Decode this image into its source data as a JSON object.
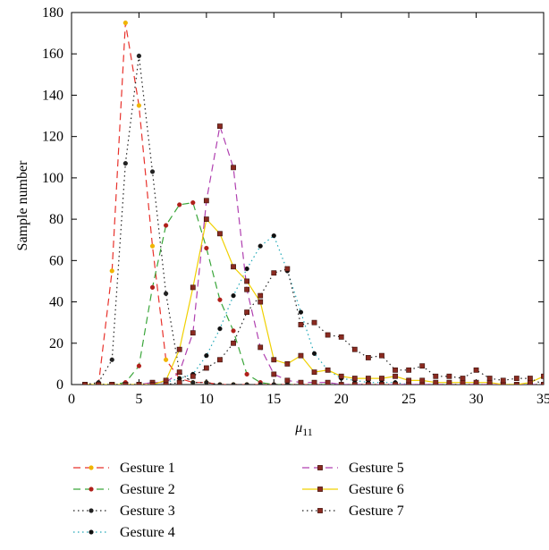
{
  "chart_data": {
    "type": "line",
    "title": "",
    "xlabel": "μ",
    "xlabel_subscript": "11",
    "ylabel": "Sample number",
    "xlim": [
      0,
      35
    ],
    "ylim": [
      0,
      180
    ],
    "xticks": [
      0,
      5,
      10,
      15,
      20,
      25,
      30,
      35
    ],
    "yticks": [
      0,
      20,
      40,
      60,
      80,
      100,
      120,
      140,
      160,
      180
    ],
    "grid": false,
    "legend_position": "bottom",
    "series": [
      {
        "name": "Gesture 1",
        "color": "#e8322c",
        "dash": "dashed",
        "marker": "dot",
        "marker_color": "#f0b400",
        "x": [
          1,
          2,
          3,
          4,
          5,
          6,
          7,
          8,
          9,
          10,
          11,
          12,
          13,
          14,
          15,
          16,
          17,
          18,
          19,
          20,
          21,
          22,
          23,
          24,
          25,
          26,
          27,
          28,
          29,
          30,
          31,
          32,
          33,
          34,
          35
        ],
        "y": [
          0,
          0,
          55,
          175,
          135,
          67,
          12,
          3,
          1,
          1,
          0,
          0,
          0,
          0,
          0,
          0,
          0,
          0,
          0,
          0,
          0,
          0,
          0,
          0,
          0,
          0,
          0,
          0,
          0,
          0,
          0,
          0,
          0,
          0,
          0
        ]
      },
      {
        "name": "Gesture 2",
        "color": "#3aa63a",
        "dash": "dashed",
        "marker": "dot",
        "marker_color": "#b0201a",
        "x": [
          1,
          2,
          3,
          4,
          5,
          6,
          7,
          8,
          9,
          10,
          11,
          12,
          13,
          14,
          15,
          16,
          17,
          18,
          19,
          20,
          21,
          22,
          23,
          24,
          25,
          26,
          27,
          28,
          29,
          30,
          31,
          32,
          33,
          34,
          35
        ],
        "y": [
          0,
          0,
          0,
          1,
          9,
          47,
          77,
          87,
          88,
          66,
          41,
          26,
          5,
          1,
          0,
          0,
          0,
          0,
          0,
          0,
          0,
          0,
          0,
          0,
          0,
          0,
          0,
          0,
          0,
          0,
          0,
          0,
          0,
          0,
          0
        ]
      },
      {
        "name": "Gesture 3",
        "color": "#222222",
        "dash": "dotted",
        "marker": "dot",
        "marker_color": "#222222",
        "x": [
          1,
          2,
          3,
          4,
          5,
          6,
          7,
          8,
          9,
          10,
          11,
          12,
          13,
          14,
          15,
          16,
          17,
          18,
          19,
          20,
          21,
          22,
          23,
          24,
          25,
          26,
          27,
          28,
          29,
          30,
          31,
          32,
          33,
          34,
          35
        ],
        "y": [
          0,
          1,
          12,
          107,
          159,
          103,
          44,
          6,
          1,
          1,
          0,
          0,
          0,
          0,
          0,
          0,
          0,
          0,
          0,
          0,
          0,
          0,
          0,
          0,
          0,
          0,
          0,
          0,
          0,
          0,
          0,
          0,
          0,
          0,
          0
        ]
      },
      {
        "name": "Gesture 4",
        "color": "#20a8b8",
        "dash": "dotted",
        "marker": "dot",
        "marker_color": "#111111",
        "x": [
          1,
          2,
          3,
          4,
          5,
          6,
          7,
          8,
          9,
          10,
          11,
          12,
          13,
          14,
          15,
          16,
          17,
          18,
          19,
          20,
          21,
          22,
          23,
          24,
          25,
          26,
          27,
          28,
          29,
          30,
          31,
          32,
          33,
          34,
          35
        ],
        "y": [
          0,
          0,
          0,
          0,
          0,
          1,
          1,
          3,
          5,
          14,
          27,
          43,
          56,
          67,
          72,
          55,
          35,
          15,
          7,
          3,
          2,
          1,
          1,
          1,
          0,
          0,
          0,
          0,
          0,
          0,
          0,
          0,
          0,
          0,
          0
        ]
      },
      {
        "name": "Gesture 5",
        "color": "#b040b0",
        "dash": "dashed",
        "marker": "square",
        "marker_color": "#8a2a20",
        "x": [
          1,
          2,
          3,
          4,
          5,
          6,
          7,
          8,
          9,
          10,
          11,
          12,
          13,
          14,
          15,
          16,
          17,
          18,
          19,
          20,
          21,
          22,
          23,
          24,
          25,
          26,
          27,
          28,
          29,
          30,
          31,
          32,
          33,
          34,
          35
        ],
        "y": [
          0,
          0,
          0,
          0,
          0,
          1,
          1,
          6,
          25,
          89,
          125,
          105,
          46,
          18,
          5,
          2,
          1,
          1,
          1,
          0,
          0,
          0,
          0,
          0,
          0,
          0,
          0,
          0,
          0,
          0,
          0,
          0,
          0,
          0,
          0
        ]
      },
      {
        "name": "Gesture 6",
        "color": "#f0d000",
        "dash": "solid",
        "marker": "square",
        "marker_color": "#8a2a20",
        "x": [
          1,
          2,
          3,
          4,
          5,
          6,
          7,
          8,
          9,
          10,
          11,
          12,
          13,
          14,
          15,
          16,
          17,
          18,
          19,
          20,
          21,
          22,
          23,
          24,
          25,
          26,
          27,
          28,
          29,
          30,
          31,
          32,
          33,
          34,
          35
        ],
        "y": [
          0,
          0,
          0,
          0,
          0,
          0,
          2,
          17,
          47,
          80,
          73,
          57,
          50,
          40,
          12,
          10,
          14,
          6,
          7,
          4,
          3,
          3,
          3,
          4,
          2,
          2,
          1,
          1,
          1,
          1,
          1,
          0,
          0,
          1,
          4
        ]
      },
      {
        "name": "Gesture 7",
        "color": "#222222",
        "dash": "dotted",
        "marker": "square",
        "marker_color": "#8a2a20",
        "x": [
          1,
          2,
          3,
          4,
          5,
          6,
          7,
          8,
          9,
          10,
          11,
          12,
          13,
          14,
          15,
          16,
          17,
          18,
          19,
          20,
          21,
          22,
          23,
          24,
          25,
          26,
          27,
          28,
          29,
          30,
          31,
          32,
          33,
          34,
          35
        ],
        "y": [
          0,
          0,
          0,
          0,
          0,
          0,
          0,
          1,
          4,
          8,
          12,
          20,
          35,
          43,
          54,
          56,
          29,
          30,
          24,
          23,
          17,
          13,
          14,
          7,
          7,
          9,
          4,
          4,
          3,
          7,
          3,
          2,
          3,
          3,
          0
        ]
      }
    ]
  }
}
